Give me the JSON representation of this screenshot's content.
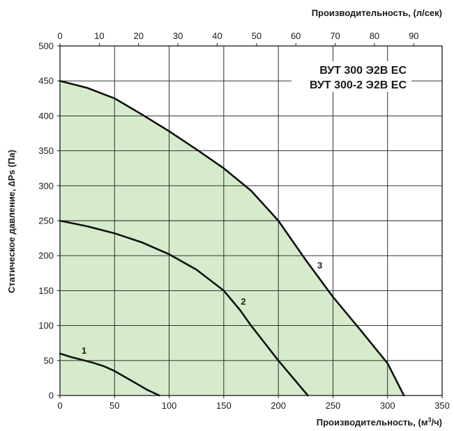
{
  "chart_data": {
    "type": "line",
    "xlabel": "Производительность, (м³/ч)",
    "xlabel_base": "Производительность, (м",
    "xlabel_sup": "3",
    "xlabel_end": "/ч)",
    "x2label": "Производительность, (л/сек)",
    "ylabel": "Статическое давление, ∆Ps (Па)",
    "xlim": [
      0,
      350
    ],
    "ylim": [
      0,
      500
    ],
    "x2lim": [
      0,
      97.22
    ],
    "x_ticks": [
      "0",
      "50",
      "100",
      "150",
      "200",
      "250",
      "300",
      "350"
    ],
    "y_ticks": [
      "0",
      "50",
      "100",
      "150",
      "200",
      "250",
      "300",
      "350",
      "400",
      "450",
      "500"
    ],
    "x2_ticks": [
      "0",
      "10",
      "20",
      "30",
      "40",
      "50",
      "60",
      "70",
      "80",
      "90"
    ],
    "grid": true,
    "models": [
      "ВУТ 300 Э2В ЕС",
      "ВУТ 300-2 Э2В ЕС"
    ],
    "fill_color": "#d6ebcc",
    "series": [
      {
        "name": "1",
        "x": [
          0,
          10,
          20,
          30,
          40,
          50,
          60,
          70,
          80,
          91
        ],
        "y": [
          60,
          55,
          51,
          47,
          42,
          35,
          26,
          17,
          8,
          0
        ]
      },
      {
        "name": "2",
        "x": [
          0,
          25,
          50,
          75,
          100,
          125,
          150,
          165,
          175,
          200,
          227
        ],
        "y": [
          250,
          242,
          232,
          219,
          202,
          180,
          150,
          122,
          100,
          50,
          0
        ]
      },
      {
        "name": "3",
        "x": [
          0,
          10,
          25,
          50,
          75,
          100,
          125,
          150,
          175,
          200,
          225,
          250,
          275,
          300,
          315
        ],
        "y": [
          450,
          446,
          440,
          425,
          402,
          378,
          352,
          325,
          293,
          250,
          194,
          141,
          94,
          46,
          0
        ]
      }
    ],
    "label_positions": [
      {
        "name": "1",
        "x": 22,
        "y": 60
      },
      {
        "name": "2",
        "x": 168,
        "y": 130
      },
      {
        "name": "3",
        "x": 238,
        "y": 182
      }
    ]
  }
}
